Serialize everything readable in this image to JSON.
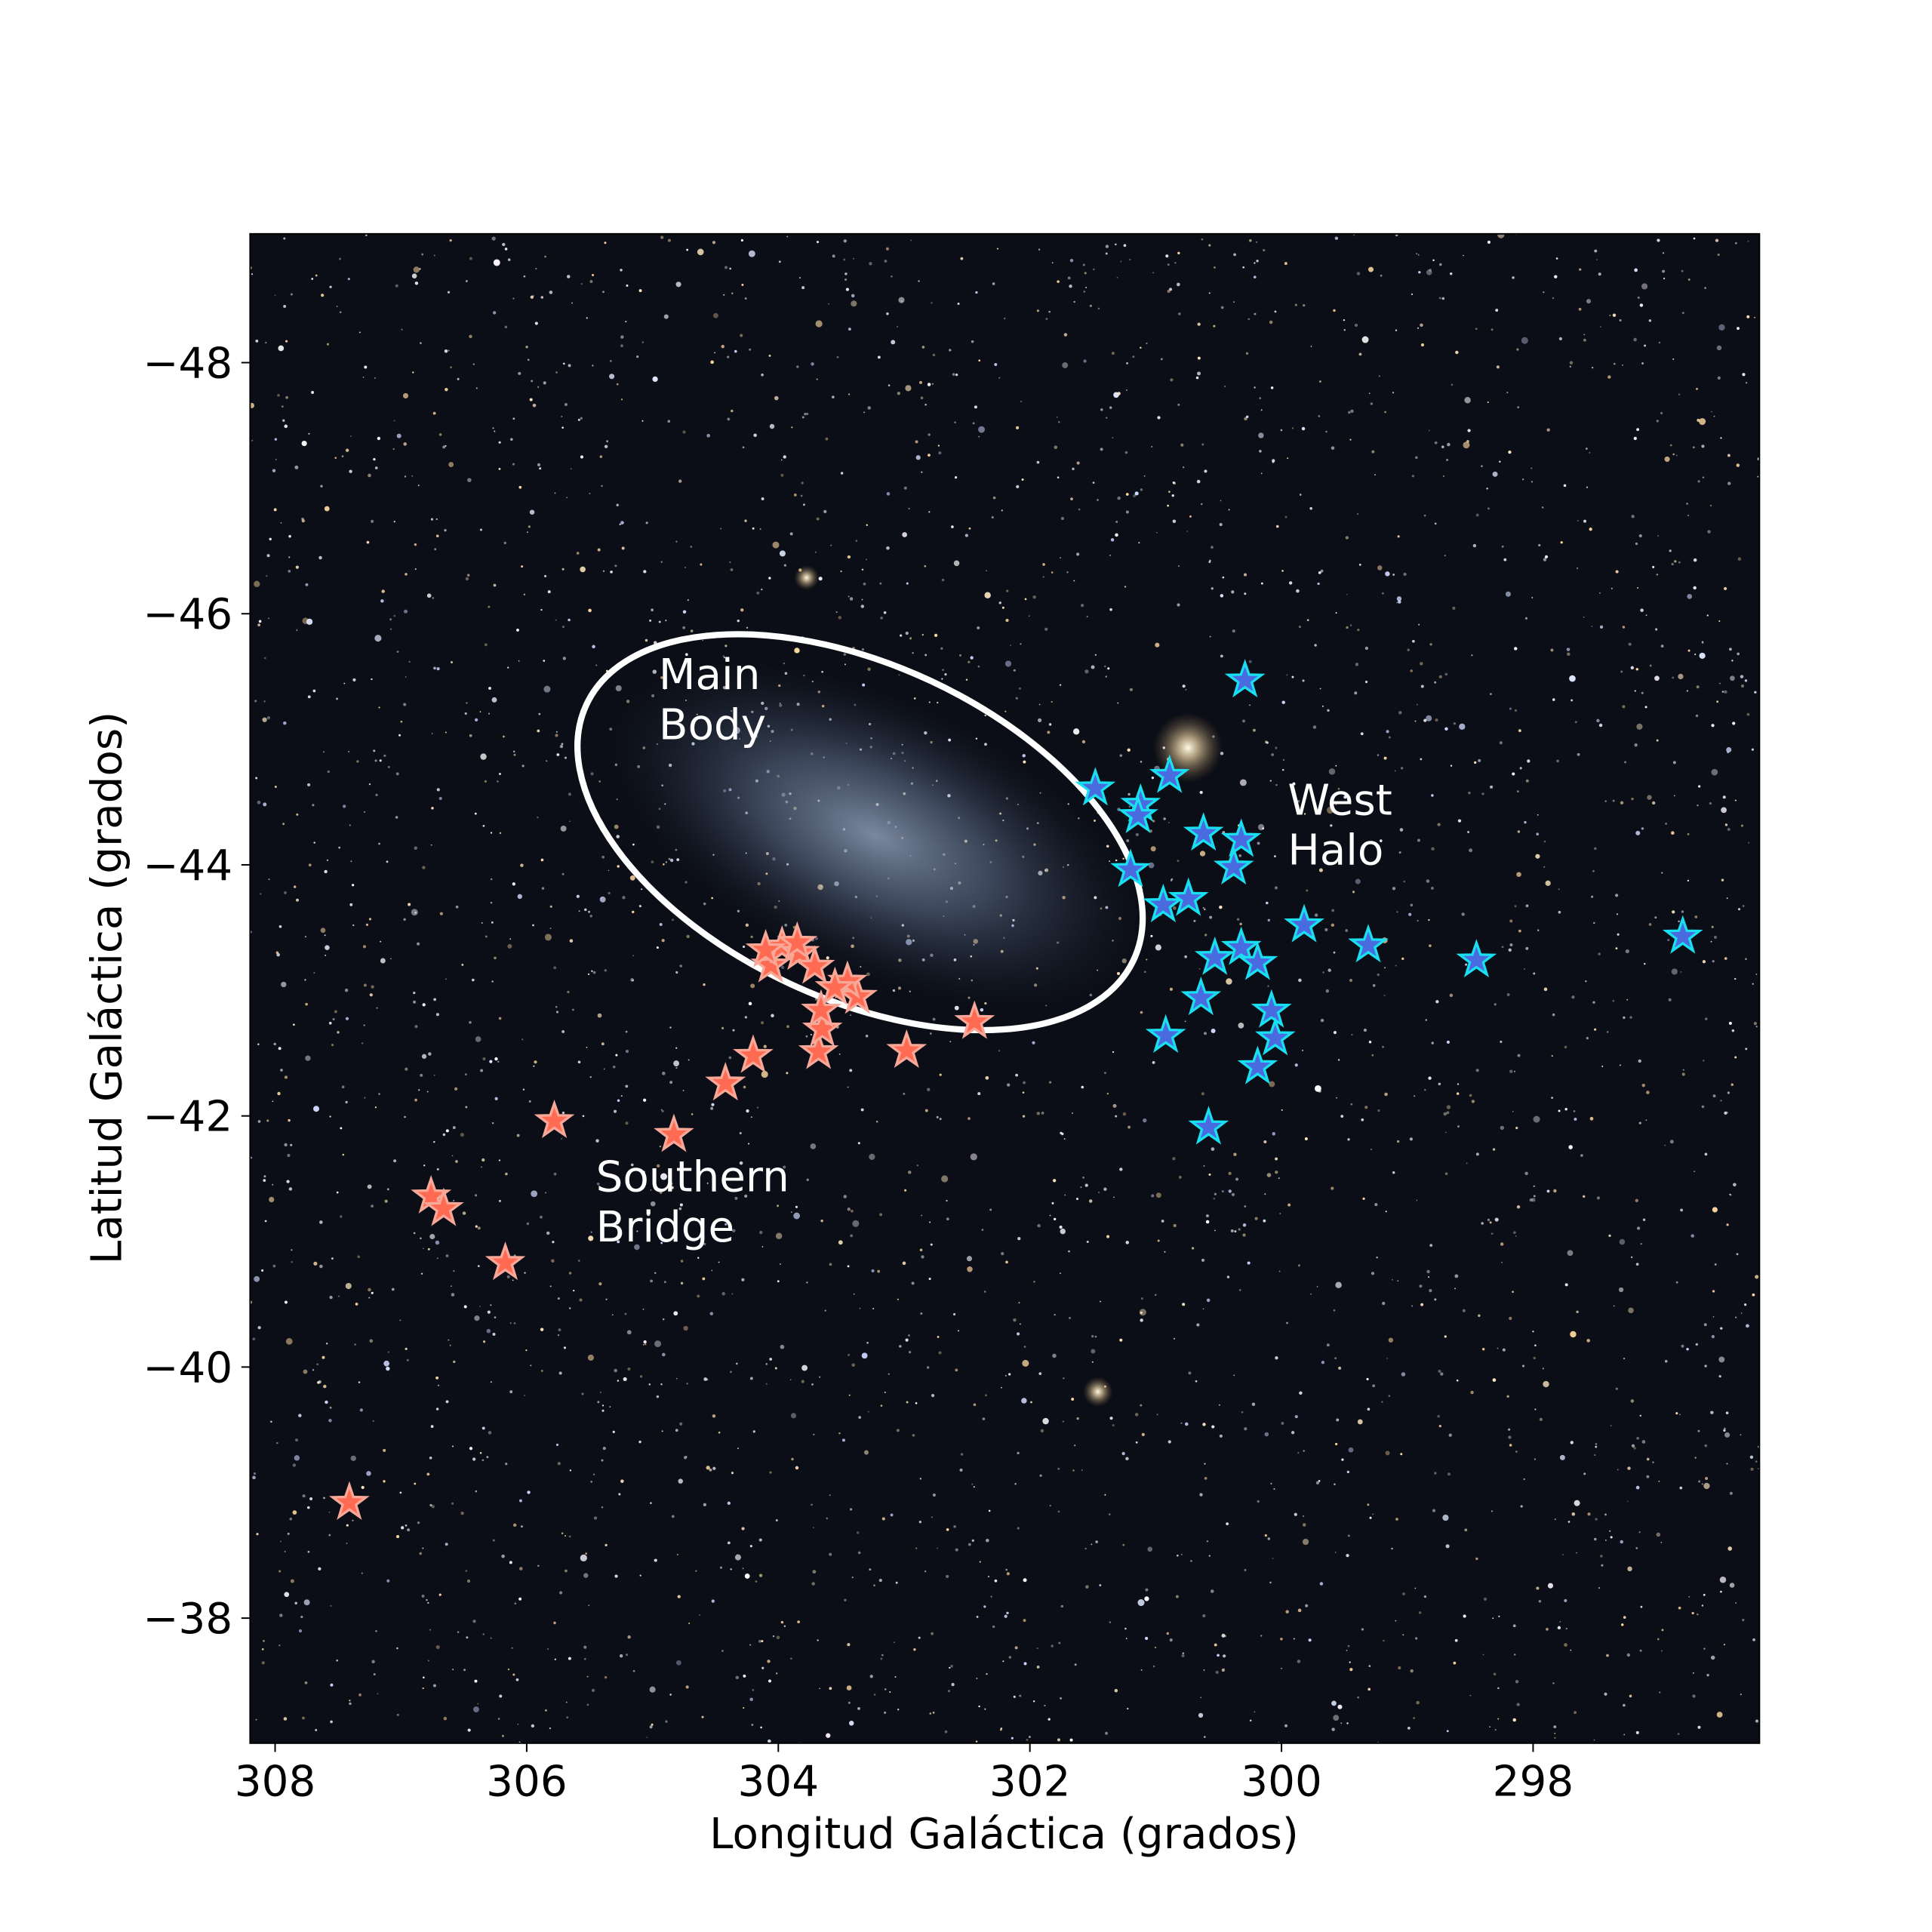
{
  "chart_data": {
    "type": "scatter",
    "title": "",
    "xlabel": "Longitud Galáctica (grados)",
    "ylabel": "Latitud Galáctica (grados)",
    "xlim": [
      308.2,
      296.2
    ],
    "ylim": [
      -49.03,
      -37.0
    ],
    "x_inverted": true,
    "y_inverted": true,
    "grid": false,
    "xticks": [
      308,
      306,
      304,
      302,
      300,
      298
    ],
    "xtick_labels": [
      "308",
      "306",
      "304",
      "302",
      "300",
      "298"
    ],
    "yticks": [
      -48,
      -46,
      -44,
      -42,
      -40,
      -38
    ],
    "ytick_labels": [
      "−48",
      "−46",
      "−44",
      "−42",
      "−40",
      "−38"
    ],
    "background": "starfield image",
    "ellipse": {
      "center": [
        303.35,
        -44.26
      ],
      "width_deg": 4.8,
      "height_deg": 2.66,
      "angle_deg": 25,
      "color": "#ffffff"
    },
    "annotations": [
      {
        "lines": [
          "Main",
          "Body"
        ],
        "x": 304.95,
        "y": -45.4
      },
      {
        "lines": [
          "West",
          "Halo"
        ],
        "x": 299.95,
        "y": -44.4
      },
      {
        "lines": [
          "Southern",
          "Bridge"
        ],
        "x": 305.45,
        "y": -41.4
      }
    ],
    "series": [
      {
        "name": "Southern Bridge",
        "marker": "star",
        "color": "#ff6a52",
        "edge_color": "#f7a898",
        "points": [
          [
            307.41,
            -38.92
          ],
          [
            306.17,
            -40.83
          ],
          [
            306.76,
            -41.36
          ],
          [
            306.66,
            -41.26
          ],
          [
            305.78,
            -41.96
          ],
          [
            304.83,
            -41.85
          ],
          [
            304.42,
            -42.26
          ],
          [
            304.2,
            -42.48
          ],
          [
            302.98,
            -42.52
          ],
          [
            302.44,
            -42.75
          ],
          [
            303.68,
            -42.51
          ],
          [
            303.65,
            -42.69
          ],
          [
            303.66,
            -42.84
          ],
          [
            303.37,
            -42.95
          ],
          [
            303.45,
            -43.07
          ],
          [
            303.55,
            -43.02
          ],
          [
            304.06,
            -43.2
          ],
          [
            303.97,
            -43.35
          ],
          [
            303.83,
            -43.3
          ],
          [
            303.85,
            -43.38
          ],
          [
            303.71,
            -43.19
          ],
          [
            304.1,
            -43.32
          ]
        ]
      },
      {
        "name": "West Halo",
        "marker": "star",
        "color": "#4a6ae0",
        "edge_color": "#18e0f0",
        "points": [
          [
            300.29,
            -45.47
          ],
          [
            301.48,
            -44.61
          ],
          [
            300.89,
            -44.71
          ],
          [
            301.12,
            -44.48
          ],
          [
            301.14,
            -44.39
          ],
          [
            300.62,
            -44.25
          ],
          [
            300.32,
            -44.2
          ],
          [
            301.2,
            -43.96
          ],
          [
            300.38,
            -43.98
          ],
          [
            300.94,
            -43.68
          ],
          [
            300.74,
            -43.73
          ],
          [
            299.82,
            -43.52
          ],
          [
            299.31,
            -43.36
          ],
          [
            298.45,
            -43.24
          ],
          [
            296.81,
            -43.43
          ],
          [
            300.53,
            -43.26
          ],
          [
            300.32,
            -43.34
          ],
          [
            300.19,
            -43.22
          ],
          [
            300.64,
            -42.94
          ],
          [
            300.08,
            -42.84
          ],
          [
            300.05,
            -42.62
          ],
          [
            300.92,
            -42.64
          ],
          [
            300.19,
            -42.39
          ],
          [
            300.58,
            -41.91
          ]
        ]
      }
    ]
  }
}
